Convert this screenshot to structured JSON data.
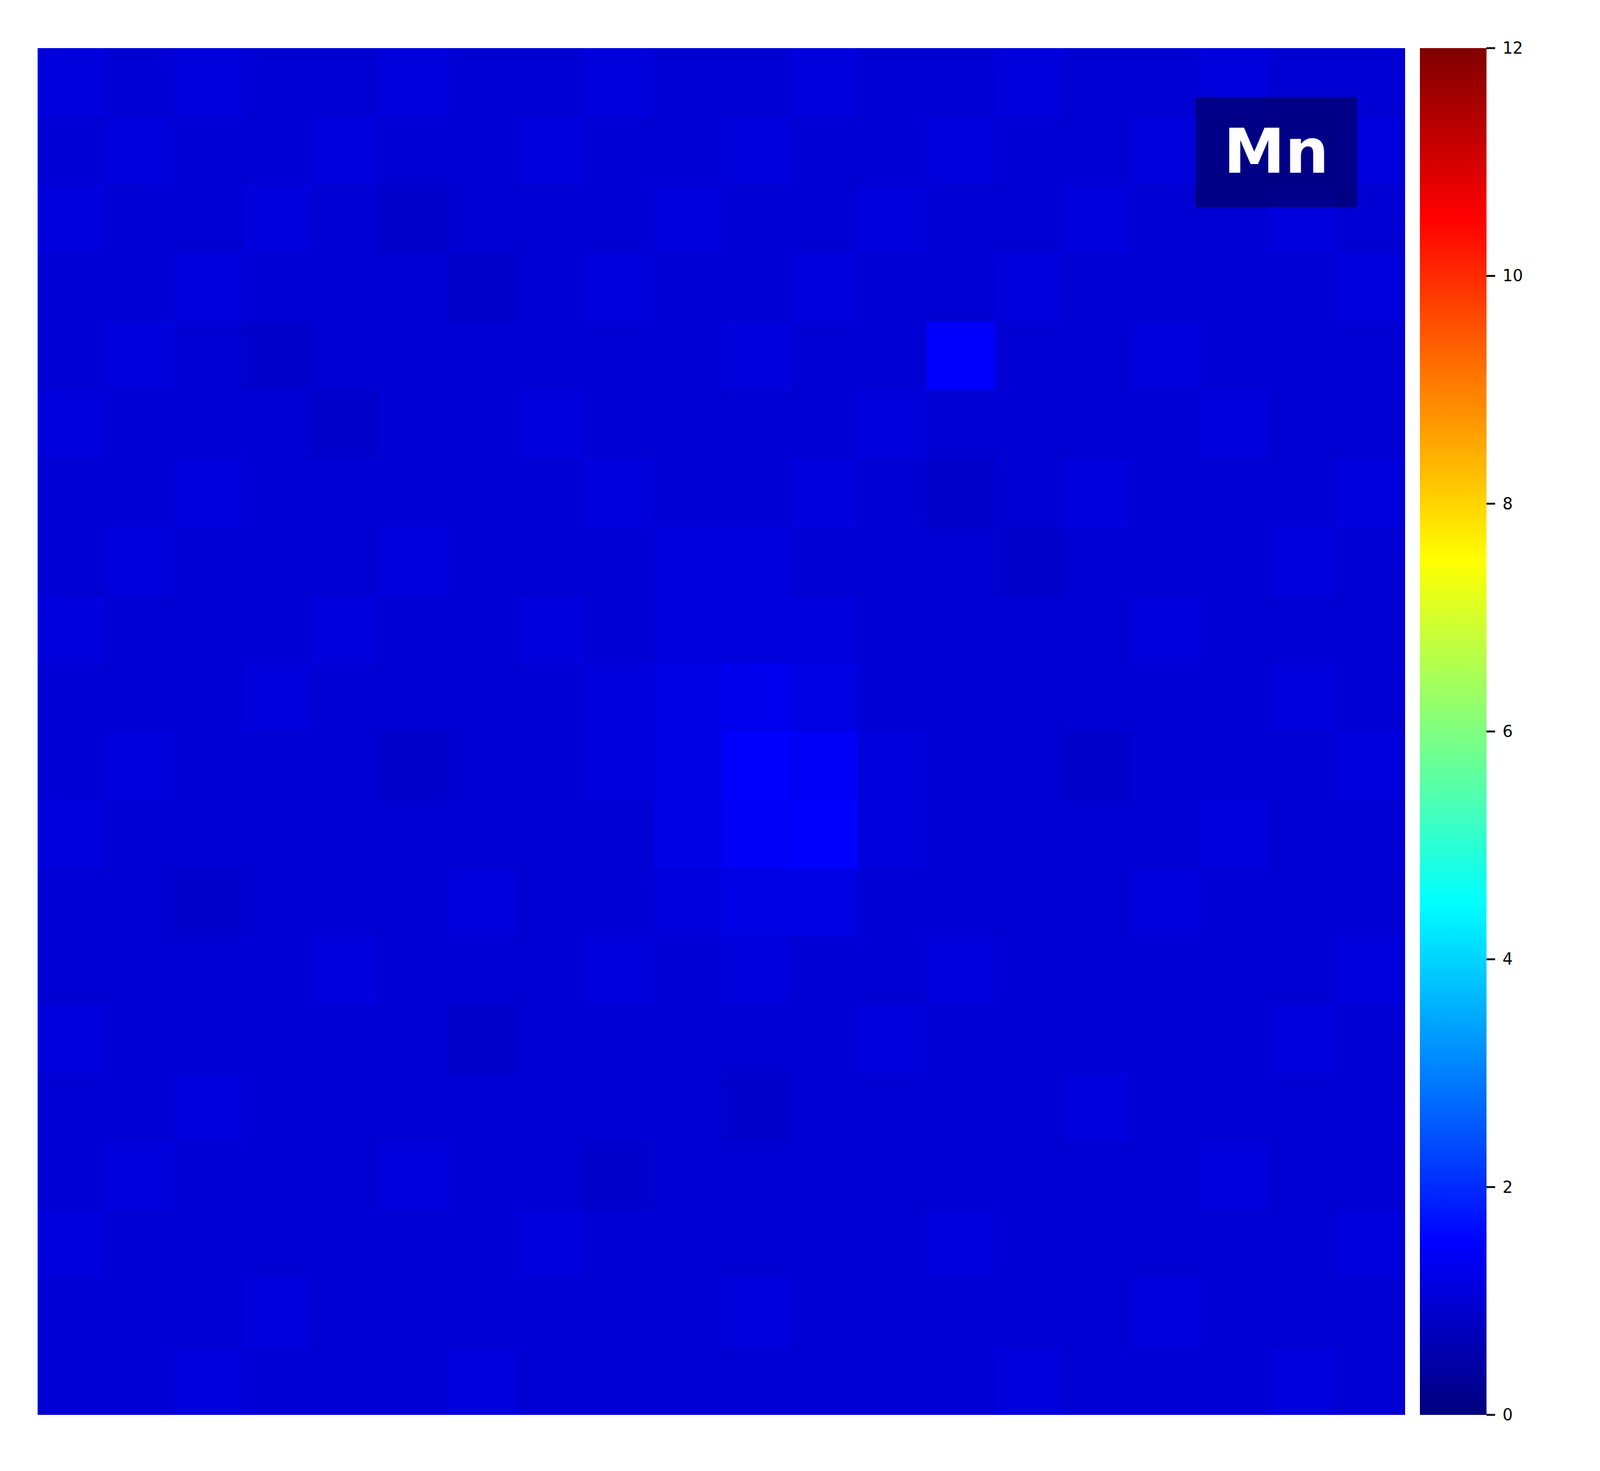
{
  "chart_data": {
    "type": "heatmap",
    "title": "Mn",
    "color": "jet",
    "tick_labels": false,
    "color_range": [
      0,
      12
    ],
    "color_ticks": [
      0,
      2,
      4,
      6,
      8,
      10,
      12
    ],
    "values": [
      [
        1.1,
        1.0,
        1.1,
        1.0,
        1.0,
        1.1,
        1.0,
        1.0,
        1.1,
        1.0,
        1.0,
        1.1,
        1.0,
        1.0,
        1.1,
        1.0,
        1.0,
        1.1,
        1.0,
        1.0
      ],
      [
        1.0,
        1.1,
        1.0,
        1.0,
        1.1,
        1.0,
        1.0,
        1.1,
        1.0,
        1.0,
        1.1,
        1.0,
        1.0,
        1.1,
        1.0,
        1.0,
        1.1,
        1.0,
        1.0,
        1.1
      ],
      [
        1.1,
        1.0,
        1.0,
        1.1,
        1.0,
        0.9,
        1.0,
        1.0,
        1.0,
        1.1,
        1.0,
        1.0,
        1.1,
        1.0,
        1.0,
        1.1,
        1.0,
        1.0,
        1.1,
        1.0
      ],
      [
        1.0,
        1.0,
        1.1,
        1.0,
        1.0,
        1.0,
        0.9,
        1.0,
        1.1,
        1.0,
        1.0,
        1.1,
        1.0,
        1.0,
        1.1,
        1.0,
        1.0,
        1.0,
        1.0,
        1.1
      ],
      [
        1.0,
        1.1,
        1.0,
        0.9,
        1.0,
        1.0,
        1.0,
        1.0,
        1.0,
        1.0,
        1.1,
        1.0,
        1.0,
        1.5,
        1.0,
        1.0,
        1.1,
        1.0,
        1.0,
        1.0
      ],
      [
        1.1,
        1.0,
        1.0,
        1.0,
        0.9,
        1.0,
        1.0,
        1.1,
        1.0,
        1.0,
        1.0,
        1.0,
        1.1,
        1.0,
        1.0,
        1.0,
        1.0,
        1.1,
        1.0,
        1.0
      ],
      [
        1.0,
        1.0,
        1.1,
        1.0,
        1.0,
        1.0,
        1.0,
        1.0,
        1.1,
        1.0,
        1.0,
        1.1,
        1.0,
        0.9,
        1.0,
        1.1,
        1.0,
        1.0,
        1.0,
        1.1
      ],
      [
        1.0,
        1.1,
        1.0,
        1.0,
        1.0,
        1.1,
        1.0,
        1.0,
        1.0,
        1.1,
        1.1,
        1.0,
        1.0,
        1.0,
        0.9,
        1.0,
        1.0,
        1.0,
        1.1,
        1.0
      ],
      [
        1.1,
        1.0,
        1.0,
        1.0,
        1.1,
        1.0,
        1.0,
        1.1,
        1.0,
        1.1,
        1.1,
        1.1,
        1.0,
        1.0,
        1.0,
        1.0,
        1.1,
        1.0,
        1.0,
        1.0
      ],
      [
        1.0,
        1.0,
        1.0,
        1.1,
        1.0,
        1.0,
        1.0,
        1.0,
        1.1,
        1.2,
        1.3,
        1.2,
        1.0,
        1.0,
        1.0,
        1.0,
        1.0,
        1.0,
        1.1,
        1.0
      ],
      [
        1.0,
        1.1,
        1.0,
        1.0,
        1.0,
        0.9,
        1.0,
        1.0,
        1.1,
        1.2,
        1.5,
        1.4,
        1.1,
        1.0,
        1.0,
        0.9,
        1.0,
        1.0,
        1.0,
        1.1
      ],
      [
        1.1,
        1.0,
        1.0,
        1.0,
        1.0,
        1.0,
        1.0,
        1.0,
        1.0,
        1.2,
        1.4,
        1.5,
        1.1,
        1.0,
        1.0,
        1.0,
        1.0,
        1.1,
        1.0,
        1.0
      ],
      [
        1.0,
        1.0,
        0.9,
        1.0,
        1.0,
        1.0,
        1.1,
        1.0,
        1.0,
        1.1,
        1.2,
        1.2,
        1.0,
        1.0,
        1.0,
        1.0,
        1.1,
        1.0,
        1.0,
        1.0
      ],
      [
        1.0,
        1.0,
        1.0,
        1.0,
        1.1,
        1.0,
        1.0,
        1.0,
        1.1,
        1.0,
        1.1,
        1.0,
        1.0,
        1.1,
        1.0,
        1.0,
        1.0,
        1.0,
        1.0,
        1.1
      ],
      [
        1.1,
        1.0,
        1.0,
        1.0,
        1.0,
        1.0,
        0.9,
        1.0,
        1.0,
        1.0,
        1.0,
        1.0,
        1.1,
        1.0,
        1.0,
        1.0,
        1.0,
        1.0,
        1.1,
        1.0
      ],
      [
        1.0,
        1.0,
        1.1,
        1.0,
        1.0,
        1.0,
        1.0,
        1.0,
        1.0,
        1.0,
        0.9,
        1.0,
        1.0,
        1.0,
        1.0,
        1.1,
        1.0,
        1.0,
        1.0,
        1.0
      ],
      [
        1.0,
        1.1,
        1.0,
        1.0,
        1.0,
        1.1,
        1.0,
        1.0,
        0.9,
        1.0,
        1.0,
        1.0,
        1.0,
        1.0,
        1.0,
        1.0,
        1.0,
        1.1,
        1.0,
        1.0
      ],
      [
        1.1,
        1.0,
        1.0,
        1.0,
        1.0,
        1.0,
        1.0,
        1.1,
        1.0,
        1.0,
        1.0,
        1.0,
        1.0,
        1.1,
        1.0,
        1.0,
        1.0,
        1.0,
        1.0,
        1.1
      ],
      [
        1.0,
        1.0,
        1.0,
        1.1,
        1.0,
        1.0,
        1.0,
        1.0,
        1.0,
        1.0,
        1.1,
        1.0,
        1.0,
        1.0,
        1.0,
        1.0,
        1.1,
        1.0,
        1.0,
        1.0
      ],
      [
        1.0,
        1.0,
        1.1,
        1.0,
        1.0,
        1.0,
        1.1,
        1.0,
        1.0,
        1.0,
        1.0,
        1.0,
        1.0,
        1.0,
        1.1,
        1.0,
        1.0,
        1.0,
        1.1,
        1.0
      ]
    ]
  }
}
